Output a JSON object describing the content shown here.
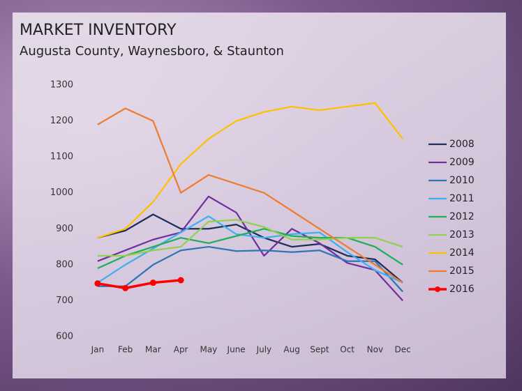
{
  "chart_data": {
    "type": "line",
    "title": "MARKET INVENTORY",
    "subtitle": "Augusta County, Waynesboro, & Staunton",
    "categories": [
      "Jan",
      "Feb",
      "Mar",
      "Apr",
      "May",
      "June",
      "July",
      "Aug",
      "Sept",
      "Oct",
      "Nov",
      "Dec"
    ],
    "ylim": [
      600,
      1300
    ],
    "yticks": [
      600,
      700,
      800,
      900,
      1000,
      1100,
      1200,
      1300
    ],
    "grid": false,
    "legend": "right",
    "series": [
      {
        "name": "2008",
        "color": "#1f2d5c",
        "values": [
          875,
          895,
          940,
          900,
          900,
          912,
          875,
          850,
          858,
          825,
          815,
          750
        ]
      },
      {
        "name": "2009",
        "color": "#7030a0",
        "values": [
          810,
          840,
          870,
          890,
          990,
          945,
          825,
          900,
          860,
          805,
          785,
          700
        ]
      },
      {
        "name": "2010",
        "color": "#2e75b6",
        "values": [
          740,
          740,
          800,
          840,
          850,
          838,
          840,
          835,
          840,
          810,
          810,
          725
        ]
      },
      {
        "name": "2011",
        "color": "#3fb0ef",
        "values": [
          750,
          800,
          845,
          890,
          935,
          885,
          875,
          885,
          890,
          835,
          785,
          750
        ]
      },
      {
        "name": "2012",
        "color": "#1fae5a",
        "values": [
          790,
          825,
          850,
          875,
          860,
          880,
          900,
          880,
          875,
          875,
          850,
          800
        ]
      },
      {
        "name": "2013",
        "color": "#92d050",
        "values": [
          825,
          825,
          840,
          850,
          920,
          925,
          905,
          870,
          870,
          875,
          875,
          850
        ]
      },
      {
        "name": "2014",
        "color": "#ffc000",
        "values": [
          875,
          900,
          975,
          1080,
          1150,
          1200,
          1225,
          1240,
          1230,
          1240,
          1250,
          1150
        ]
      },
      {
        "name": "2015",
        "color": "#ed7d31",
        "values": [
          1190,
          1235,
          1200,
          1000,
          1050,
          1025,
          1000,
          950,
          900,
          850,
          800,
          750
        ]
      },
      {
        "name": "2016",
        "color": "#ff0000",
        "marker": true,
        "values": [
          748,
          735,
          750,
          757,
          null,
          null,
          null,
          null,
          null,
          null,
          null,
          null
        ]
      }
    ]
  }
}
